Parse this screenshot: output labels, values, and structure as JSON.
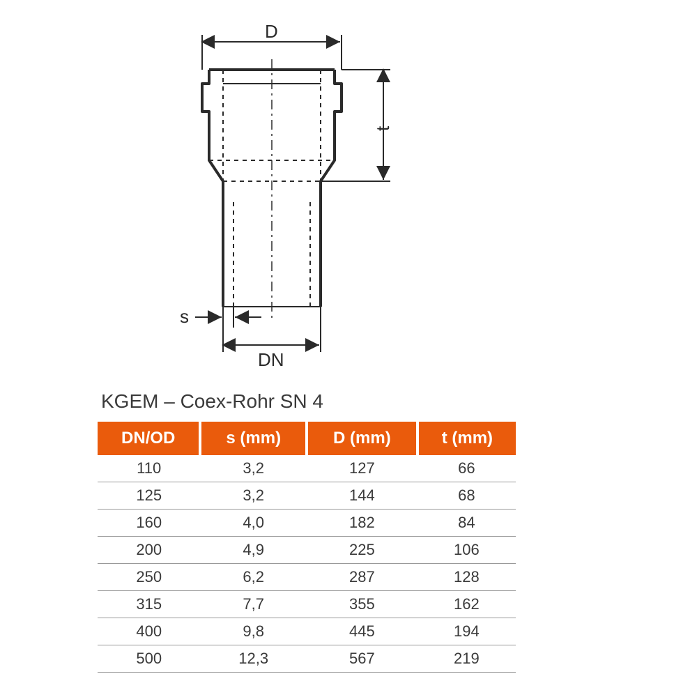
{
  "title": "KGEM – Coex-Rohr SN 4",
  "diagram": {
    "labels": {
      "D": "D",
      "t": "t",
      "s": "s",
      "DN": "DN"
    },
    "stroke": "#2a2a2a",
    "stroke_width_main": 4,
    "stroke_width_dim": 2,
    "dash": "6,6"
  },
  "table": {
    "header_bg": "#ea5b0c",
    "header_color": "#ffffff",
    "border_color": "#999999",
    "text_color": "#3a3a3a",
    "font_size_header": 24,
    "font_size_cell": 22,
    "columns": [
      "DN/OD",
      "s (mm)",
      "D (mm)",
      "t (mm)"
    ],
    "rows": [
      [
        "110",
        "3,2",
        "127",
        "66"
      ],
      [
        "125",
        "3,2",
        "144",
        "68"
      ],
      [
        "160",
        "4,0",
        "182",
        "84"
      ],
      [
        "200",
        "4,9",
        "225",
        "106"
      ],
      [
        "250",
        "6,2",
        "287",
        "128"
      ],
      [
        "315",
        "7,7",
        "355",
        "162"
      ],
      [
        "400",
        "9,8",
        "445",
        "194"
      ],
      [
        "500",
        "12,3",
        "567",
        "219"
      ]
    ]
  }
}
